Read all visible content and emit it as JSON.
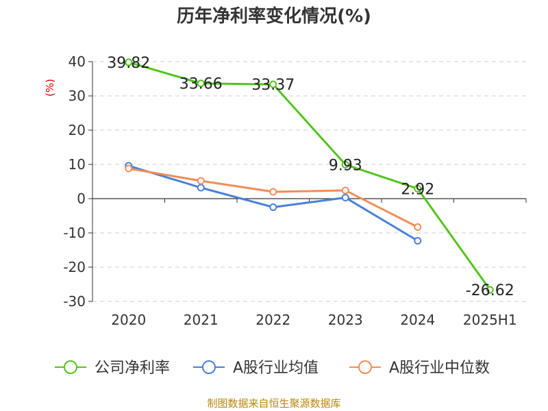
{
  "chart_data": {
    "type": "line",
    "title": "历年净利率变化情况(%)",
    "ylabel": "(%)",
    "ylim": [
      -30,
      40
    ],
    "yticks": [
      40,
      30,
      20,
      10,
      0,
      -10,
      -20,
      -30
    ],
    "categories": [
      "2020",
      "2021",
      "2022",
      "2023",
      "2024",
      "2025H1"
    ],
    "grid": "horizontal-dashed",
    "legend_position": "bottom",
    "series": [
      {
        "name": "公司净利率",
        "color": "#52c41a",
        "values": [
          39.82,
          33.66,
          33.37,
          9.93,
          2.92,
          -26.62
        ],
        "labels": [
          "39.82",
          "33.66",
          "33.37",
          "9.93",
          "2.92",
          "-26.62"
        ]
      },
      {
        "name": "A股行业均值",
        "color": "#4a7fd6",
        "values": [
          9.6,
          3.2,
          -2.5,
          0.3,
          -12.3,
          null
        ]
      },
      {
        "name": "A股行业中位数",
        "color": "#f28c58",
        "values": [
          8.8,
          5.2,
          2.0,
          2.4,
          -8.3,
          null
        ]
      }
    ]
  },
  "footer": {
    "source": "制图数据来自恒生聚源数据库"
  }
}
